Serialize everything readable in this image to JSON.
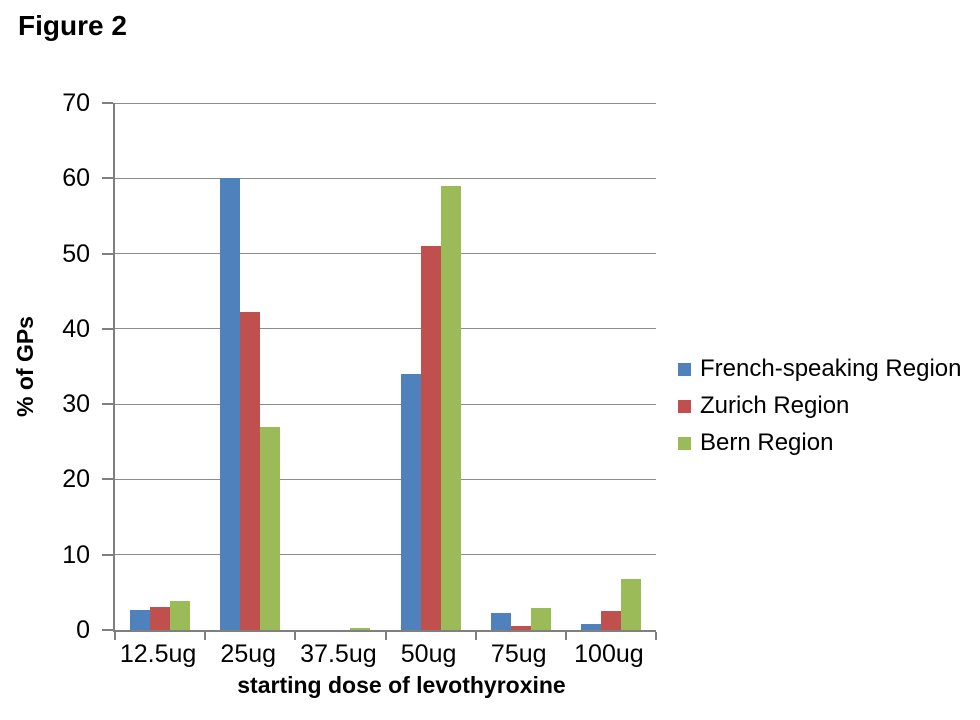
{
  "chart_data": {
    "type": "bar",
    "title": "Figure 2",
    "xlabel": "starting dose of levothyroxine",
    "ylabel": "% of GPs",
    "categories": [
      "12.5ug",
      "25ug",
      "37.5ug",
      "50ug",
      "75ug",
      "100ug"
    ],
    "series": [
      {
        "name": "French-speaking Region",
        "color": "#4F81BD",
        "values": [
          2.7,
          60,
          0,
          34,
          2.2,
          0.8
        ]
      },
      {
        "name": "Zurich Region",
        "color": "#C0504D",
        "values": [
          3.1,
          42.3,
          0,
          51,
          0.5,
          2.5
        ]
      },
      {
        "name": "Bern Region",
        "color": "#9BBB59",
        "values": [
          3.8,
          27,
          0.3,
          59,
          2.9,
          6.8
        ]
      }
    ],
    "ylim": [
      0,
      70
    ],
    "yticks": [
      0,
      10,
      20,
      30,
      40,
      50,
      60,
      70
    ],
    "grid": true,
    "legend_position": "right",
    "colors": {
      "gridline": "#8C8C8C",
      "axis": "#7F7F7F",
      "text": "#000000",
      "background": "#FFFFFF"
    }
  }
}
